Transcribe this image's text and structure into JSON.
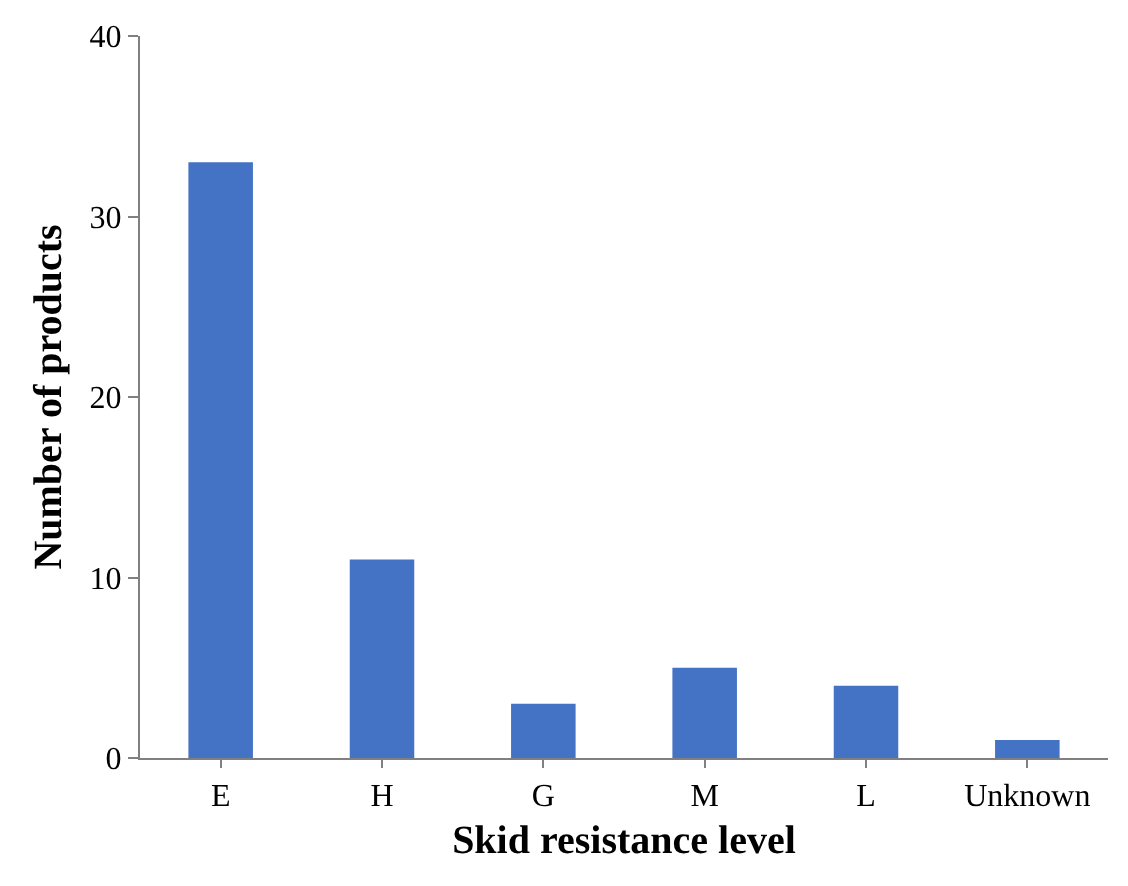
{
  "chart_data": {
    "type": "bar",
    "xlabel": "Skid resistance level",
    "ylabel": "Number of products",
    "categories": [
      "E",
      "H",
      "G",
      "M",
      "L",
      "Unknown"
    ],
    "values": [
      33,
      11,
      3,
      5,
      4,
      1
    ],
    "color": "#4472c4",
    "ylim": [
      0,
      40
    ],
    "yticks": [
      0,
      10,
      20,
      30,
      40
    ],
    "legend": false
  }
}
